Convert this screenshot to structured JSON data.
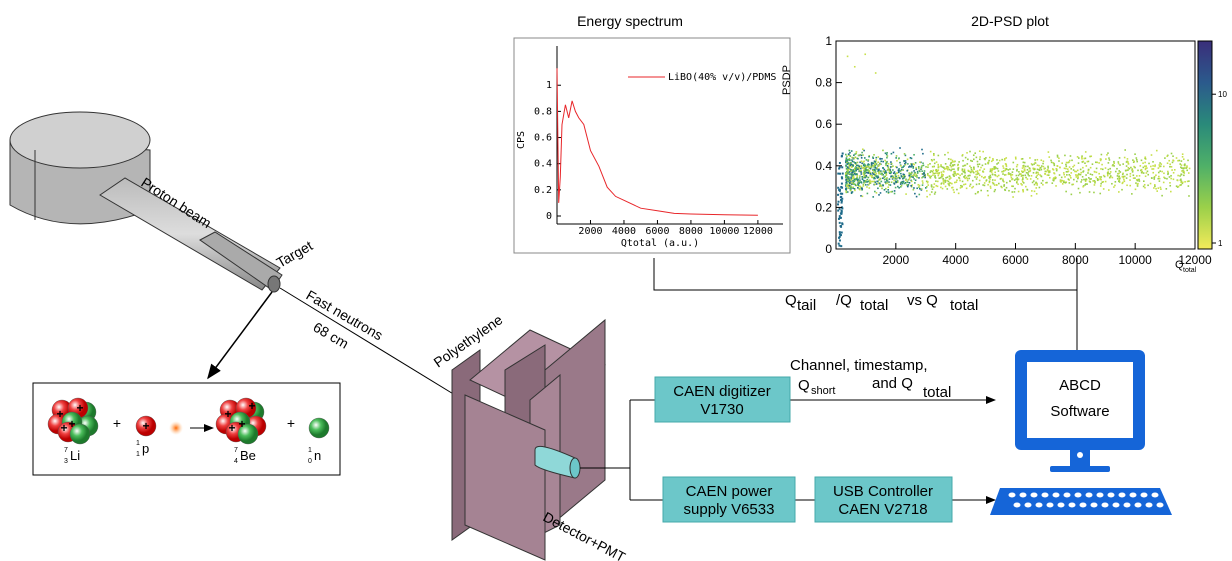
{
  "energy_spectrum": {
    "title": "Energy spectrum",
    "xlabel": "Qtotal (a.u.)",
    "ylabel": "CPS",
    "legend": "LiBO(40% v/v)/PDMS",
    "xlim": [
      0,
      13500
    ],
    "ylim": [
      0,
      1.3
    ],
    "xticks": [
      2000,
      4000,
      6000,
      8000,
      10000,
      12000
    ],
    "yticks": [
      0,
      0.2,
      0.4,
      0.6,
      0.8,
      1
    ],
    "x": [
      0,
      100,
      200,
      300,
      500,
      700,
      900,
      1100,
      1300,
      1600,
      2000,
      2500,
      3000,
      3500,
      4000,
      5000,
      6000,
      7000,
      8000,
      10000,
      12000
    ],
    "values": [
      1.13,
      0.1,
      0.3,
      0.7,
      0.85,
      0.75,
      0.88,
      0.8,
      0.75,
      0.7,
      0.5,
      0.38,
      0.22,
      0.15,
      0.12,
      0.06,
      0.04,
      0.02,
      0.015,
      0.01,
      0.005
    ],
    "color": "#e8262a"
  },
  "psd_plot": {
    "title": "2D-PSD plot",
    "xlabel": "Q",
    "xlabel_sub": "total",
    "ylabel": "PSDP",
    "xlim": [
      0,
      12000
    ],
    "ylim": [
      0,
      1
    ],
    "xticks": [
      2000,
      4000,
      6000,
      8000,
      10000,
      12000
    ],
    "yticks": [
      0,
      0.2,
      0.4,
      0.6,
      0.8,
      1
    ],
    "colorbar_ticks": [
      1,
      10
    ]
  },
  "labels": {
    "proton_beam": "Proton beam",
    "target": "Target",
    "fast_neutrons": "Fast neutrons",
    "distance": "68 cm",
    "polyethylene": "Polyethylene",
    "detector": "Detector+PMT"
  },
  "digitizer": [
    "CAEN digitizer",
    "V1730"
  ],
  "power_supply": [
    "CAEN power",
    "supply V6533"
  ],
  "usb_controller": [
    "USB Controller",
    "CAEN V2718"
  ],
  "software": [
    "ABCD",
    "Software"
  ],
  "signal": {
    "line1": "Channel, timestamp,",
    "q_short": "Q",
    "q_short_sub": "short",
    "and_q": "and Q",
    "q_total_sub": "total"
  },
  "psd_label": {
    "q": "Q",
    "tail": "tail",
    "slash_q": "/Q",
    "total": "total",
    "vs_q": "vs Q",
    "total2": "total"
  },
  "reaction": {
    "plus": "+",
    "nuclei": [
      {
        "mass": "7",
        "charge": "3",
        "symbol": "Li"
      },
      {
        "mass": "1",
        "charge": "1",
        "symbol": "p"
      },
      {
        "mass": "7",
        "charge": "4",
        "symbol": "Be"
      },
      {
        "mass": "1",
        "charge": "0",
        "symbol": "n"
      }
    ]
  }
}
